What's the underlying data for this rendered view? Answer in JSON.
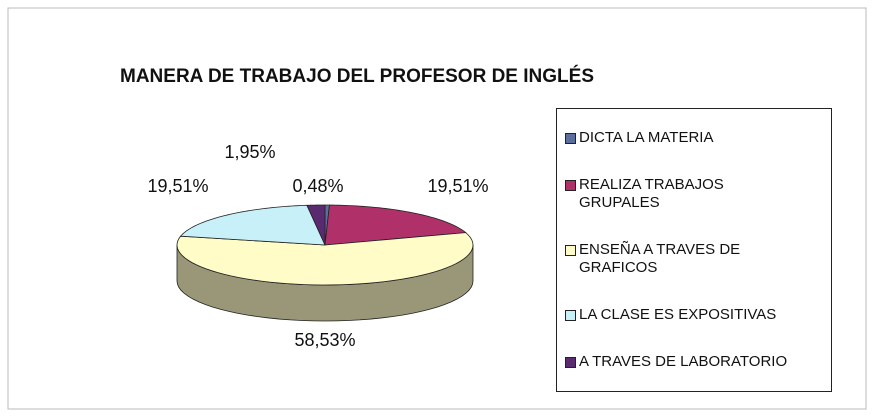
{
  "chart_data": {
    "type": "pie3d",
    "title": "MANERA DE TRABAJO DEL PROFESOR DE INGLÉS",
    "categories": [
      "DICTA LA MATERIA",
      "REALIZA TRABAJOS GRUPALES",
      "ENSEÑA A TRAVES DE GRAFICOS",
      "LA CLASE ES EXPOSITIVAS",
      "A TRAVES DE LABORATORIO"
    ],
    "values": [
      0.48,
      19.51,
      58.53,
      19.51,
      1.95
    ],
    "value_labels": [
      "0,48%",
      "19,51%",
      "58,53%",
      "19,51%",
      "1,95%"
    ],
    "colors": [
      "#5b6f9e",
      "#b0306a",
      "#fffcc8",
      "#c8f0f8",
      "#5a2a70"
    ],
    "legend": "right"
  }
}
